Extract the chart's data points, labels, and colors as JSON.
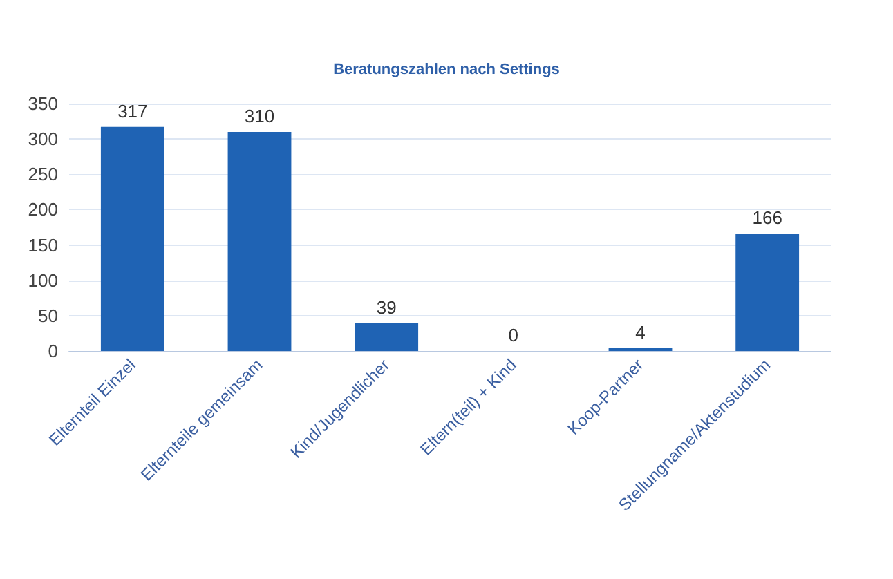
{
  "chart_data": {
    "type": "bar",
    "title": "Beratungszahlen nach Settings",
    "categories": [
      "Elternteil Einzel",
      "Elternteile gemeinsam",
      "Kind/Jugendlicher",
      "Eltern(teil) + Kind",
      "Koop-Partner",
      "Stellungname/Aktenstudium"
    ],
    "values": [
      317,
      310,
      39,
      0,
      4,
      166
    ],
    "color": "#1f63b4",
    "ylim": [
      0,
      350
    ],
    "yticks": [
      0,
      50,
      100,
      150,
      200,
      250,
      300,
      350
    ],
    "grid": "y",
    "data_labels": true
  }
}
